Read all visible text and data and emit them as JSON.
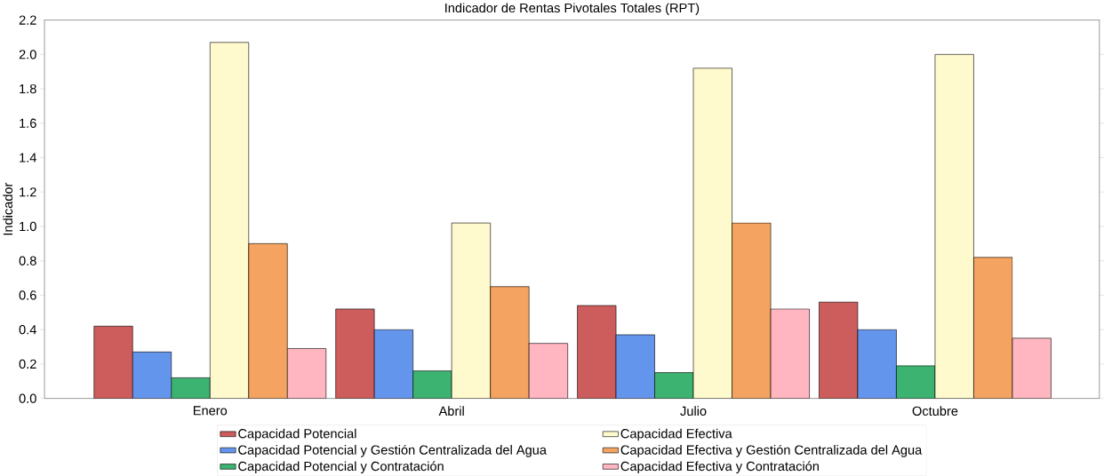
{
  "chart_data": {
    "type": "bar",
    "title": "Indicador de Rentas Pivotales Totales (RPT)",
    "ylabel": "Indicador",
    "categories": [
      "Enero",
      "Abril",
      "Julio",
      "Octubre"
    ],
    "series": [
      {
        "name": "Capacidad Potencial",
        "color": "#cd5c5c",
        "values": [
          0.42,
          0.52,
          0.54,
          0.56
        ]
      },
      {
        "name": "Capacidad Potencial y Gestión Centralizada del Agua",
        "color": "#6495ed",
        "values": [
          0.27,
          0.4,
          0.37,
          0.4
        ]
      },
      {
        "name": "Capacidad Potencial y Contratación",
        "color": "#3cb371",
        "values": [
          0.12,
          0.16,
          0.15,
          0.19
        ]
      },
      {
        "name": "Capacidad Efectiva",
        "color": "#fffacd",
        "values": [
          2.07,
          1.02,
          1.92,
          2.0
        ]
      },
      {
        "name": "Capacidad Efectiva y Gestión Centralizada del Agua",
        "color": "#f4a460",
        "values": [
          0.9,
          0.65,
          1.02,
          0.82
        ]
      },
      {
        "name": "Capacidad Efectiva y Contratación",
        "color": "#ffb6c1",
        "values": [
          0.29,
          0.32,
          0.52,
          0.35
        ]
      }
    ],
    "ylim": [
      0,
      2.2
    ],
    "yticks": [
      {
        "value": 0,
        "label": "0.0"
      },
      {
        "value": 0.2,
        "label": "0.2"
      },
      {
        "value": 0.4,
        "label": "0.4"
      },
      {
        "value": 0.6,
        "label": "0.6"
      },
      {
        "value": 0.8,
        "label": "0.8"
      },
      {
        "value": 1.0,
        "label": "1.0"
      },
      {
        "value": 1.2,
        "label": "1.2"
      },
      {
        "value": 1.4,
        "label": "1.4"
      },
      {
        "value": 1.6,
        "label": "1.6"
      },
      {
        "value": 1.8,
        "label": "1.8"
      },
      {
        "value": 2.0,
        "label": "2.0"
      },
      {
        "value": 2.2,
        "label": "2.2"
      }
    ],
    "grid": false,
    "legend": "bottom"
  }
}
